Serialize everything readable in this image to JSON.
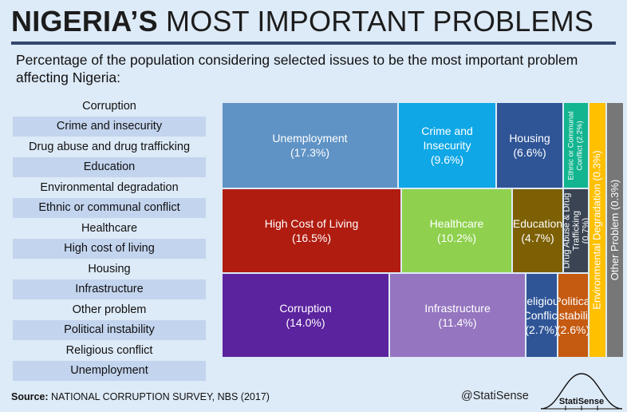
{
  "title": {
    "bold": "NIGERIA’S",
    "rest": " MOST IMPORTANT PROBLEMS"
  },
  "subtitle": "Percentage of the population considering selected issues to be the most important problem affecting Nigeria:",
  "legend": [
    "Corruption",
    "Crime and insecurity",
    "Drug abuse and drug trafficking",
    "Education",
    "Environmental degradation",
    "Ethnic or communal conflict",
    "Healthcare",
    "High cost of living",
    "Housing",
    "Infrastructure",
    "Other problem",
    "Political instability",
    "Religious conflict",
    "Unemployment"
  ],
  "chart_data": {
    "type": "treemap",
    "title": "NIGERIA’S MOST IMPORTANT PROBLEMS",
    "unit": "%",
    "items": [
      {
        "name": "Unemployment",
        "value": 17.3,
        "label": [
          "Unemployment",
          "(17.3%)"
        ],
        "color": "#5f93c5"
      },
      {
        "name": "Crime and Insecurity",
        "value": 9.6,
        "label": [
          "Crime and",
          "Insecurity",
          "(9.6%)"
        ],
        "color": "#0fa7e6"
      },
      {
        "name": "Housing",
        "value": 6.6,
        "label": [
          "Housing",
          "(6.6%)"
        ],
        "color": "#2f5597"
      },
      {
        "name": "Ethnic or Communal Conflict",
        "value": 2.2,
        "label": [
          "Ethnic or Communal",
          "Conflict (2.2%)"
        ],
        "color": "#12b590"
      },
      {
        "name": "High Cost of Living",
        "value": 16.5,
        "label": [
          "High Cost of Living",
          "(16.5%)"
        ],
        "color": "#b01c10"
      },
      {
        "name": "Healthcare",
        "value": 10.2,
        "label": [
          "Healthcare",
          "(10.2%)"
        ],
        "color": "#8fd14e"
      },
      {
        "name": "Education",
        "value": 4.7,
        "label": [
          "Education",
          "(4.7%)"
        ],
        "color": "#7c6003"
      },
      {
        "name": "Drug Abuse & Drug Trafficking",
        "value": 0.7,
        "label": [
          "Drug Abuse & Drug",
          "Trafficking",
          "(0.7%)"
        ],
        "color": "#3a4452"
      },
      {
        "name": "Corruption",
        "value": 14.0,
        "label": [
          "Corruption",
          "(14.0%)"
        ],
        "color": "#5b239e"
      },
      {
        "name": "Infrastructure",
        "value": 11.4,
        "label": [
          "Infrastructure",
          "(11.4%)"
        ],
        "color": "#9575c0"
      },
      {
        "name": "Religious Conflict",
        "value": 2.7,
        "label": [
          "Religious",
          "Conflict",
          "(2.7%)"
        ],
        "color": "#2f5597"
      },
      {
        "name": "Political Instability",
        "value": 2.6,
        "label": [
          "Political",
          "Instability",
          "(2.6%)"
        ],
        "color": "#c55a11"
      },
      {
        "name": "Environmental Degradation",
        "value": 0.3,
        "label": [
          "Environmental  Degradation  (0.3%)"
        ],
        "color": "#ffc000"
      },
      {
        "name": "Other Problem",
        "value": 0.3,
        "label": [
          "Other Problem  (0.3%)"
        ],
        "color": "#777777"
      }
    ]
  },
  "source": {
    "label": "Source:",
    "text": " NATIONAL CORRUPTION SURVEY, NBS (2017)"
  },
  "handle": "@StatiSense",
  "logo_text": "StatiSense"
}
